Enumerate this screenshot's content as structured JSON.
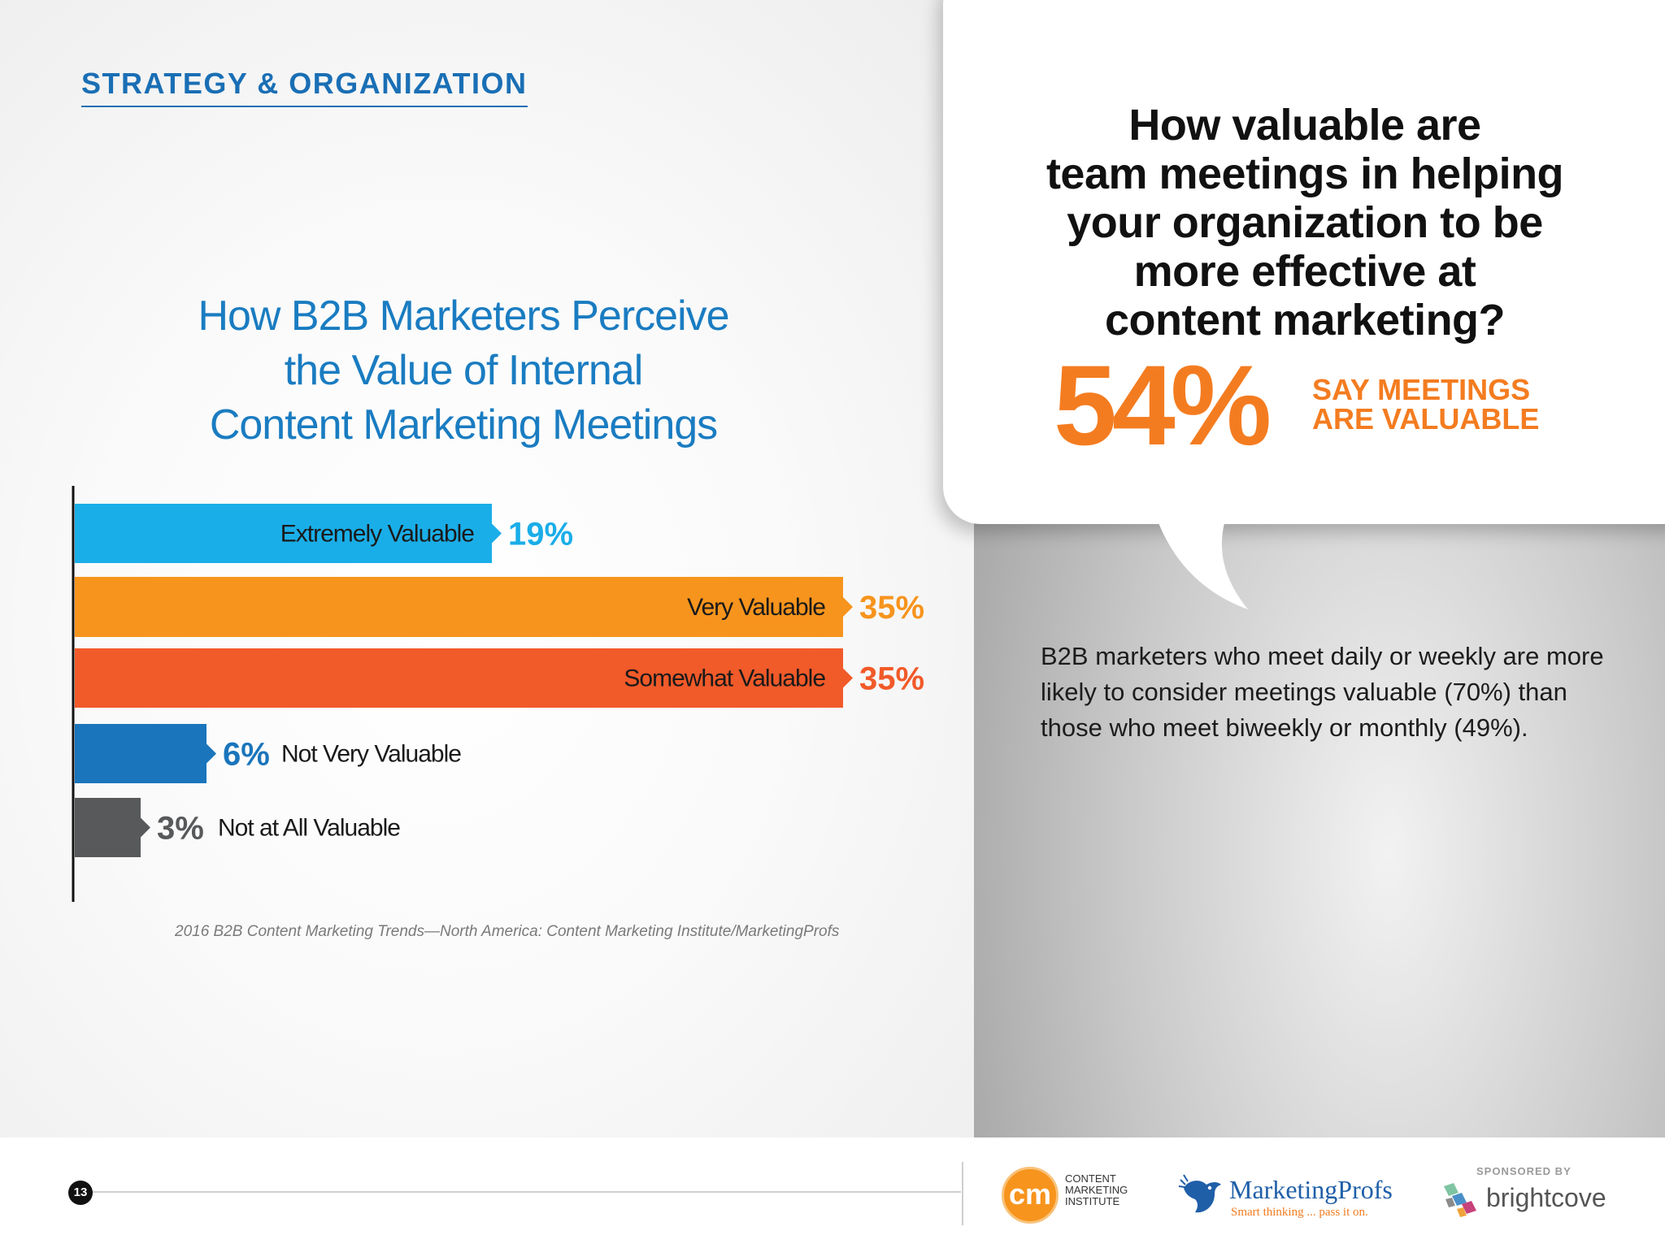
{
  "section": {
    "heading": "STRATEGY & ORGANIZATION"
  },
  "chart_title_lines": [
    "How B2B Marketers Perceive",
    "the Value of Internal",
    "Content Marketing Meetings"
  ],
  "chart_data": {
    "type": "bar",
    "orientation": "horizontal",
    "title": "How B2B Marketers Perceive the Value of Internal Content Marketing Meetings",
    "categories": [
      "Extremely Valuable",
      "Very Valuable",
      "Somewhat Valuable",
      "Not Very Valuable",
      "Not at All  Valuable"
    ],
    "values": [
      19,
      35,
      35,
      6,
      3
    ],
    "value_labels": [
      "19%",
      "35%",
      "35%",
      "6%",
      "3%"
    ],
    "colors": [
      "#1aaee8",
      "#f7941d",
      "#f15a29",
      "#1a75bc",
      "#58595b"
    ],
    "xlim": [
      0,
      35
    ],
    "grid": false,
    "legend": "none",
    "source": "2016 B2B Content Marketing Trends—North America: Content Marketing Institute/MarketingProfs"
  },
  "callout": {
    "question_lines": [
      "How valuable are",
      "team meetings in helping",
      "your organization to be",
      "more effective at",
      "content marketing?"
    ],
    "big_percent": "54%",
    "say_lines": [
      "SAY MEETINGS",
      "ARE VALUABLE"
    ],
    "body": "B2B marketers who meet daily or weekly are more likely to consider meetings valuable (70%) than those who meet biweekly or monthly (49%)."
  },
  "footer": {
    "page_number": "13",
    "cmi": {
      "mark": "cm",
      "lines": [
        "CONTENT",
        "MARKETING",
        "INSTITUTE"
      ]
    },
    "marketingprofs": {
      "name": "MarketingProfs",
      "tagline": "Smart thinking ... pass it on."
    },
    "brightcove": {
      "sponsored_by": "SPONSORED BY",
      "name": "brightcove"
    }
  }
}
